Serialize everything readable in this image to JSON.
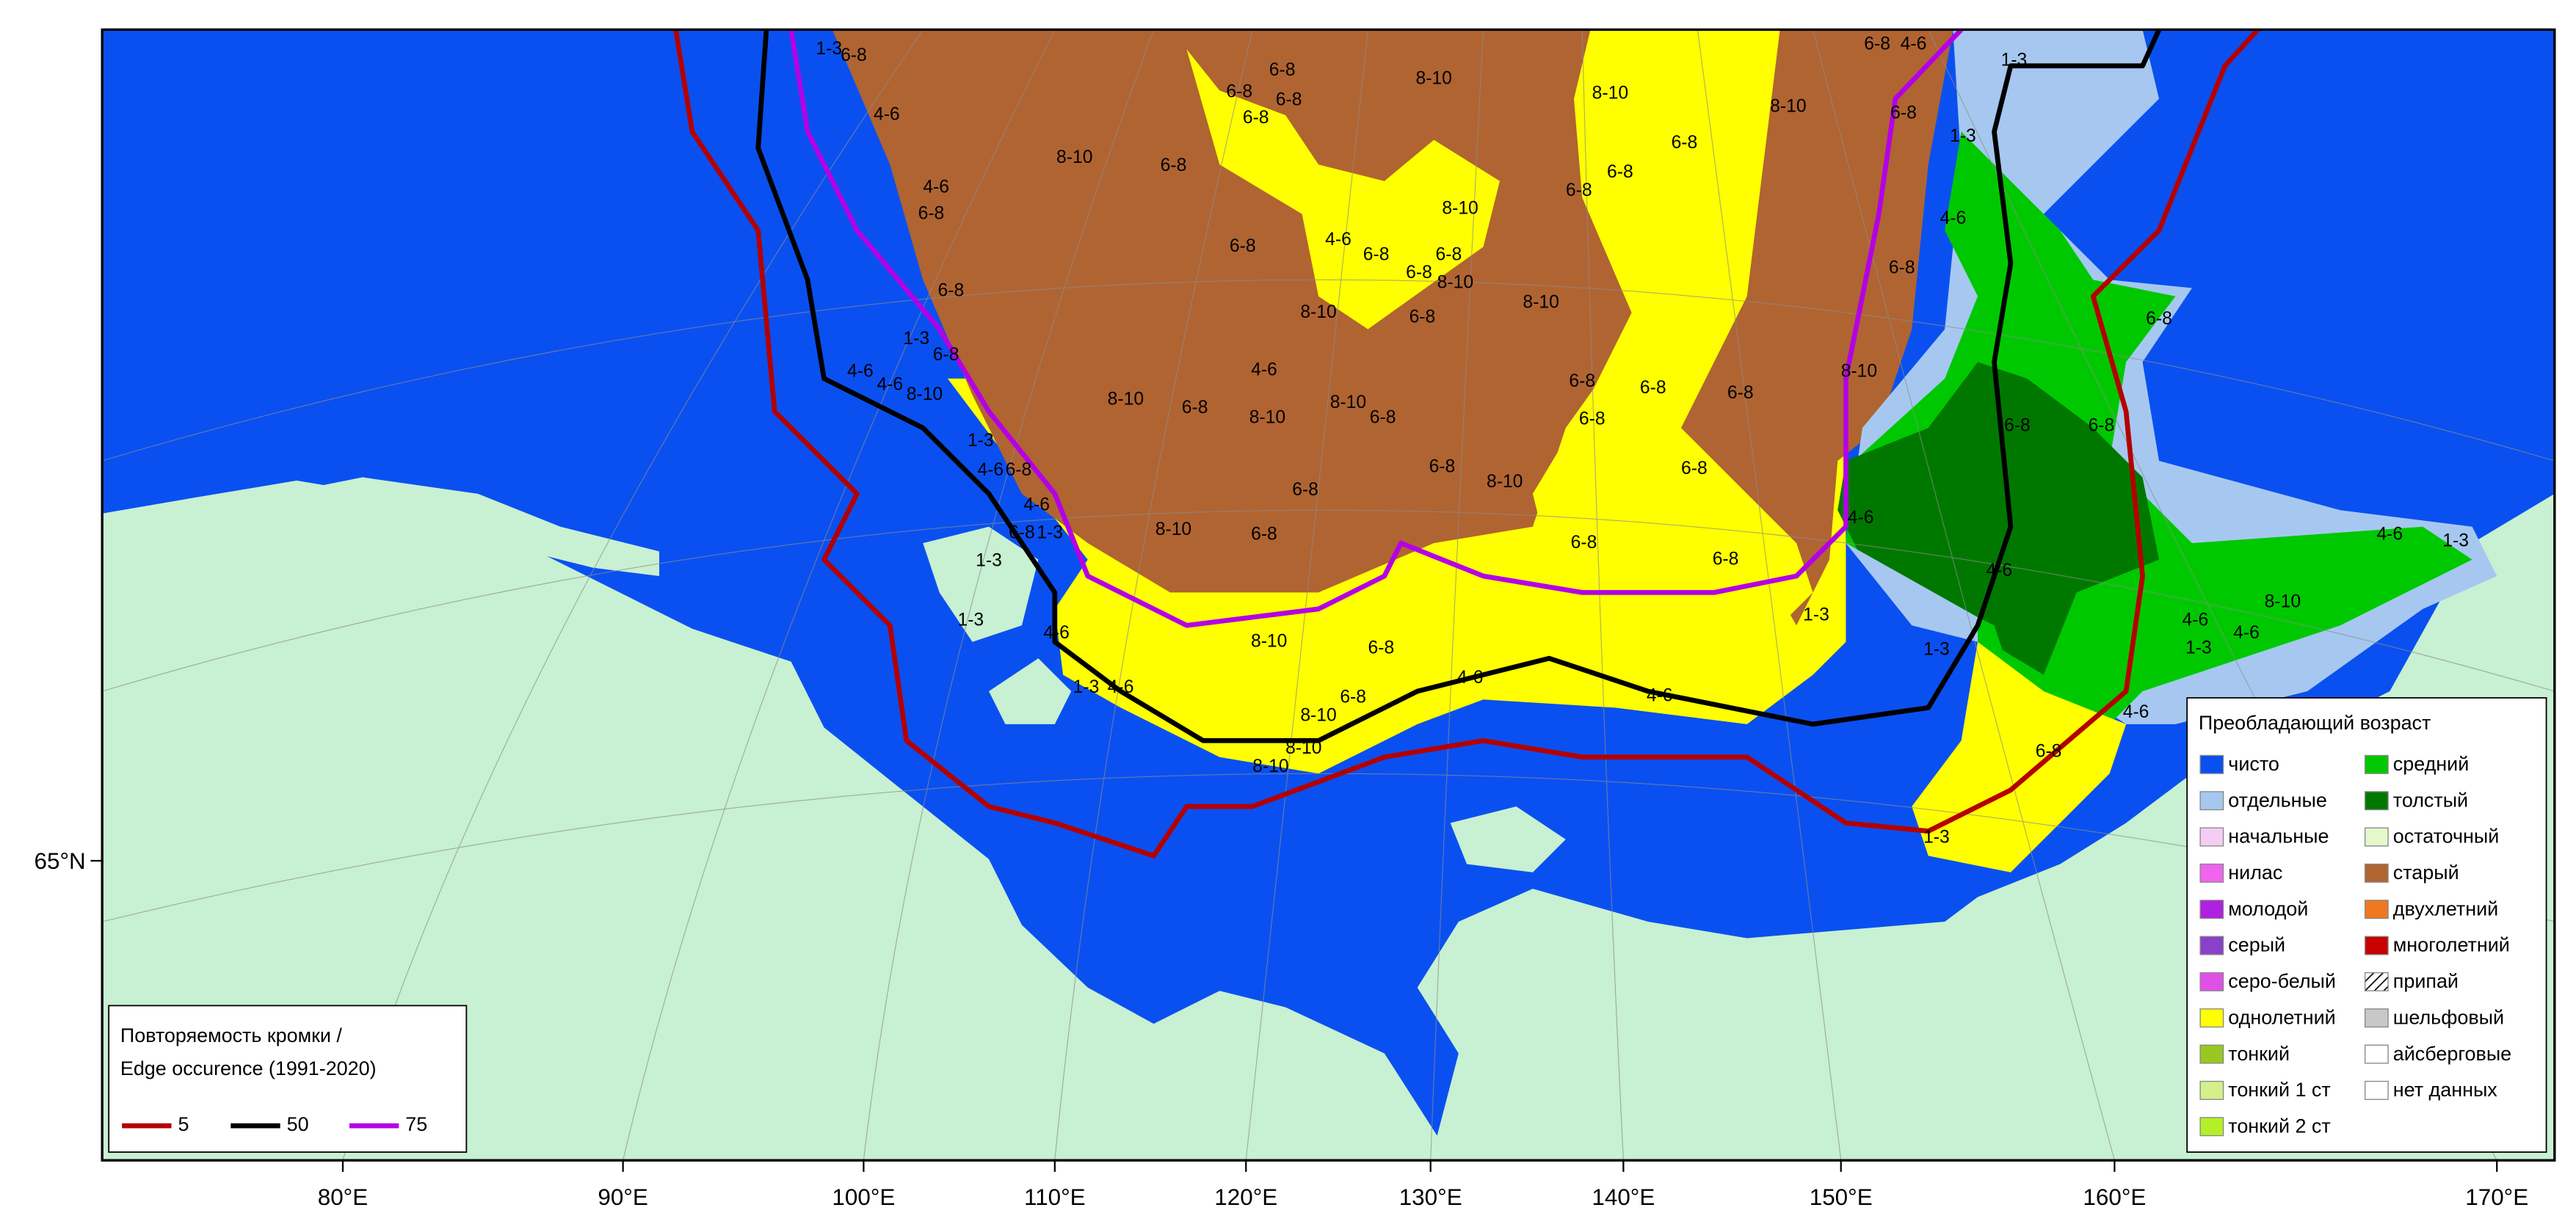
{
  "map": {
    "lon_labels": [
      "80°E",
      "90°E",
      "100°E",
      "110°E",
      "120°E",
      "130°E",
      "140°E",
      "150°E",
      "160°E",
      "170°E"
    ],
    "lat_labels": [
      "65°N"
    ],
    "zone_labels": [
      "1-3",
      "6-8",
      "4-6",
      "4-6",
      "6-8",
      "6-8",
      "1-3",
      "6-8",
      "4-6",
      "4-6",
      "8-10",
      "1-3",
      "4-6",
      "6-8",
      "4-6",
      "6-8",
      "1-3",
      "1-3",
      "1-3",
      "4-6",
      "1-3",
      "4-6",
      "6-8",
      "6-8",
      "6-8",
      "6-8",
      "8-10",
      "8-10",
      "6-8",
      "8-10",
      "8-10",
      "6-8",
      "6-8",
      "6-8",
      "8-10",
      "4-6",
      "6-8",
      "6-8",
      "6-8",
      "6-8",
      "8-10",
      "8-10",
      "6-8",
      "8-10",
      "4-6",
      "8-10",
      "6-8",
      "8-10",
      "6-8",
      "8-10",
      "6-8",
      "6-8",
      "6-8",
      "6-8",
      "6-8",
      "8-10",
      "6-8",
      "4-6",
      "6-8",
      "6-8",
      "1-3",
      "1-3",
      "4-6",
      "6-8",
      "6-8",
      "6-8",
      "6-8",
      "8-10",
      "6-8",
      "8-10",
      "6-8",
      "6-8",
      "6-8",
      "4-6",
      "4-6",
      "1-3",
      "8-10",
      "6-8",
      "4-6",
      "4-6",
      "6-8",
      "8-10",
      "8-10",
      "8-10",
      "1-3",
      "4-6",
      "1-3",
      "8-10",
      "4-6",
      "4-6",
      "1-3",
      "4-6",
      "6-8",
      "1-3"
    ]
  },
  "legend": {
    "title": "Преобладающий возраст",
    "items": [
      {
        "label": "чисто",
        "color": "#0a50f0"
      },
      {
        "label": "отдельные",
        "color": "#a6c8f0"
      },
      {
        "label": "начальные",
        "color": "#f4cdf4"
      },
      {
        "label": "нилас",
        "color": "#f064f0"
      },
      {
        "label": "молодой",
        "color": "#b020e0"
      },
      {
        "label": "серый",
        "color": "#8a40c8"
      },
      {
        "label": "серо-белый",
        "color": "#e050e8"
      },
      {
        "label": "однолетний",
        "color": "#ffff00"
      },
      {
        "label": "тонкий",
        "color": "#98c820"
      },
      {
        "label": "тонкий 1 ст",
        "color": "#d4f08c"
      },
      {
        "label": "тонкий 2 ст",
        "color": "#b4f028"
      },
      {
        "label": "средний",
        "color": "#00c800"
      },
      {
        "label": "толстый",
        "color": "#007800"
      },
      {
        "label": "остаточный",
        "color": "#e4f8cc"
      },
      {
        "label": "старый",
        "color": "#b06432"
      },
      {
        "label": "двухлетний",
        "color": "#f07820"
      },
      {
        "label": "многолетний",
        "color": "#c80000"
      },
      {
        "label": "припай",
        "color": "#ffffff",
        "pattern": "hatch"
      },
      {
        "label": "шельфовый",
        "color": "#c8c8c8"
      },
      {
        "label": "айсберговые",
        "color": "#ffffff"
      },
      {
        "label": "нет данных",
        "color": "#ffffff"
      }
    ]
  },
  "edge_legend": {
    "title": [
      "Повторяемость кромки /",
      "Edge occurence (1991-2020)"
    ],
    "items": [
      {
        "label": "5",
        "color": "#b40000"
      },
      {
        "label": "50",
        "color": "#000000"
      },
      {
        "label": "75",
        "color": "#b400e6"
      }
    ]
  }
}
